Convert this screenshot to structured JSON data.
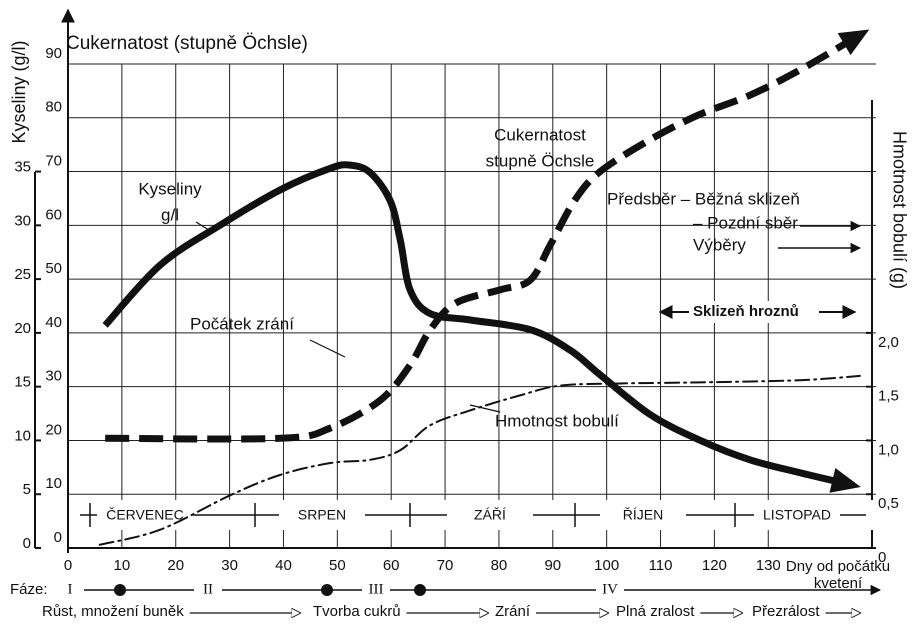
{
  "chart_data": {
    "type": "line",
    "title": "Cukernatost (stupně Öchsle)",
    "y2_title": "Kyseliny (g/l)",
    "y3_title": "Hmotnost bobulí (g)",
    "x_title": [
      "Dny od počátku",
      "kvetení"
    ],
    "xlim": [
      0,
      150
    ],
    "xticks": [
      0,
      10,
      20,
      30,
      40,
      50,
      60,
      70,
      80,
      90,
      100,
      110,
      120,
      130
    ],
    "ylim": [
      0,
      90
    ],
    "yticks": [
      0,
      10,
      20,
      30,
      40,
      50,
      60,
      70,
      80,
      90
    ],
    "y2lim": [
      0,
      45
    ],
    "y2ticks": [
      0,
      5,
      10,
      15,
      20,
      25,
      30,
      35
    ],
    "y3lim": [
      0,
      4.5
    ],
    "y3ticks": [
      0,
      {
        "value": 0.5,
        "label": "0,5"
      },
      {
        "value": 1.0,
        "label": "1,0"
      },
      {
        "value": 1.5,
        "label": "1,5"
      },
      {
        "value": 2.0,
        "label": "2,0"
      }
    ],
    "grid": true,
    "series": [
      {
        "name": "Cukernatost stupně Öchsle",
        "color": "#111111",
        "axis": "y",
        "line_style": "dashed",
        "line_width": 7,
        "arrow": true,
        "x": [
          6.9,
          39.4,
          48.7,
          58,
          63.5,
          67.2,
          71.9,
          80.2,
          85.8,
          89.5,
          94.1,
          98.8,
          108,
          117,
          126.6,
          135.9,
          147
        ],
        "values": [
          20.4,
          20.4,
          22.3,
          27.5,
          34,
          40.5,
          45.5,
          48,
          49.8,
          56.3,
          64.7,
          70,
          75.9,
          80.5,
          84.2,
          88.9,
          95.4
        ]
      },
      {
        "name": "Kyseliny g/l",
        "color": "#111111",
        "axis": "y2",
        "line_style": "solid",
        "line_width": 7,
        "arrow": true,
        "x": [
          6.9,
          17.1,
          28.2,
          39.4,
          48.7,
          52.4,
          56.1,
          59.8,
          61.7,
          63.5,
          67.2,
          74.7,
          85.8,
          93.2,
          98.8,
          108.1,
          117.4,
          126.6,
          135.9,
          145.2
        ],
        "values": [
          20.7,
          26.3,
          30,
          33.3,
          35.3,
          35.6,
          34.9,
          32.3,
          28.6,
          24,
          21.8,
          21.2,
          20.3,
          18.4,
          16.1,
          12.4,
          10,
          8.2,
          7,
          5.9
        ]
      },
      {
        "name": "Hmotnost bobulí",
        "color": "#111111",
        "axis": "y3",
        "line_style": "dashdot",
        "line_width": 2,
        "arrow": false,
        "x": [
          5.9,
          17.1,
          30.1,
          39.4,
          48.7,
          56.1,
          61.7,
          67.2,
          74.7,
          84,
          91.4,
          102.5,
          117.4,
          135.9,
          147
        ],
        "values": [
          0.03,
          0.17,
          0.49,
          0.68,
          0.79,
          0.82,
          0.91,
          1.14,
          1.28,
          1.42,
          1.51,
          1.53,
          1.54,
          1.56,
          1.6
        ]
      }
    ],
    "annotations": [
      [
        "Kyseliny",
        "g/l"
      ],
      [
        "Cukernatost",
        "stupně Öchsle"
      ],
      [
        "Počátek zrání"
      ],
      [
        "Hmotnost bobulí"
      ],
      [
        "Předsběr – Běžná sklizeň"
      ],
      [
        "– Pozdní sběr"
      ],
      [
        "Výběry"
      ],
      [
        "Sklizeň hroznů"
      ]
    ],
    "months": [
      "ČERVENEC",
      "SRPEN",
      "ZÁŘÍ",
      "ŘÍJEN",
      "LISTOPAD"
    ],
    "phase_label": "Fáze:",
    "phases": [
      "I",
      "II",
      "III",
      "IV"
    ],
    "stages": [
      "Růst, množení buněk",
      "Tvorba cukrů",
      "Zrání",
      "Plná zralost",
      "Přezrálost"
    ]
  }
}
